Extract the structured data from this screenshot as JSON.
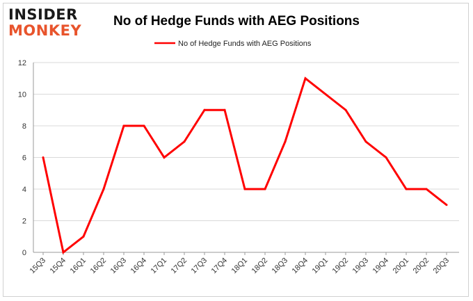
{
  "logo": {
    "line1": "INSIDER",
    "line2": "MONKEY"
  },
  "chart_data": {
    "type": "line",
    "title": "No of Hedge Funds with AEG Positions",
    "xlabel": "",
    "ylabel": "",
    "categories": [
      "15Q3",
      "15Q4",
      "16Q1",
      "16Q2",
      "16Q3",
      "16Q4",
      "17Q1",
      "17Q2",
      "17Q3",
      "17Q4",
      "18Q1",
      "18Q2",
      "18Q3",
      "18Q4",
      "19Q1",
      "19Q2",
      "19Q3",
      "19Q4",
      "20Q1",
      "20Q2",
      "20Q3"
    ],
    "series": [
      {
        "name": "No of Hedge Funds with AEG Positions",
        "values": [
          6,
          0,
          1,
          4,
          8,
          8,
          6,
          7,
          9,
          9,
          4,
          4,
          7,
          11,
          10,
          9,
          7,
          6,
          4,
          4,
          3
        ]
      }
    ],
    "ylim": [
      0,
      12
    ],
    "yticks": [
      0,
      2,
      4,
      6,
      8,
      10,
      12
    ],
    "grid": true,
    "legend": "top-center",
    "line_color": "#ff0000"
  }
}
